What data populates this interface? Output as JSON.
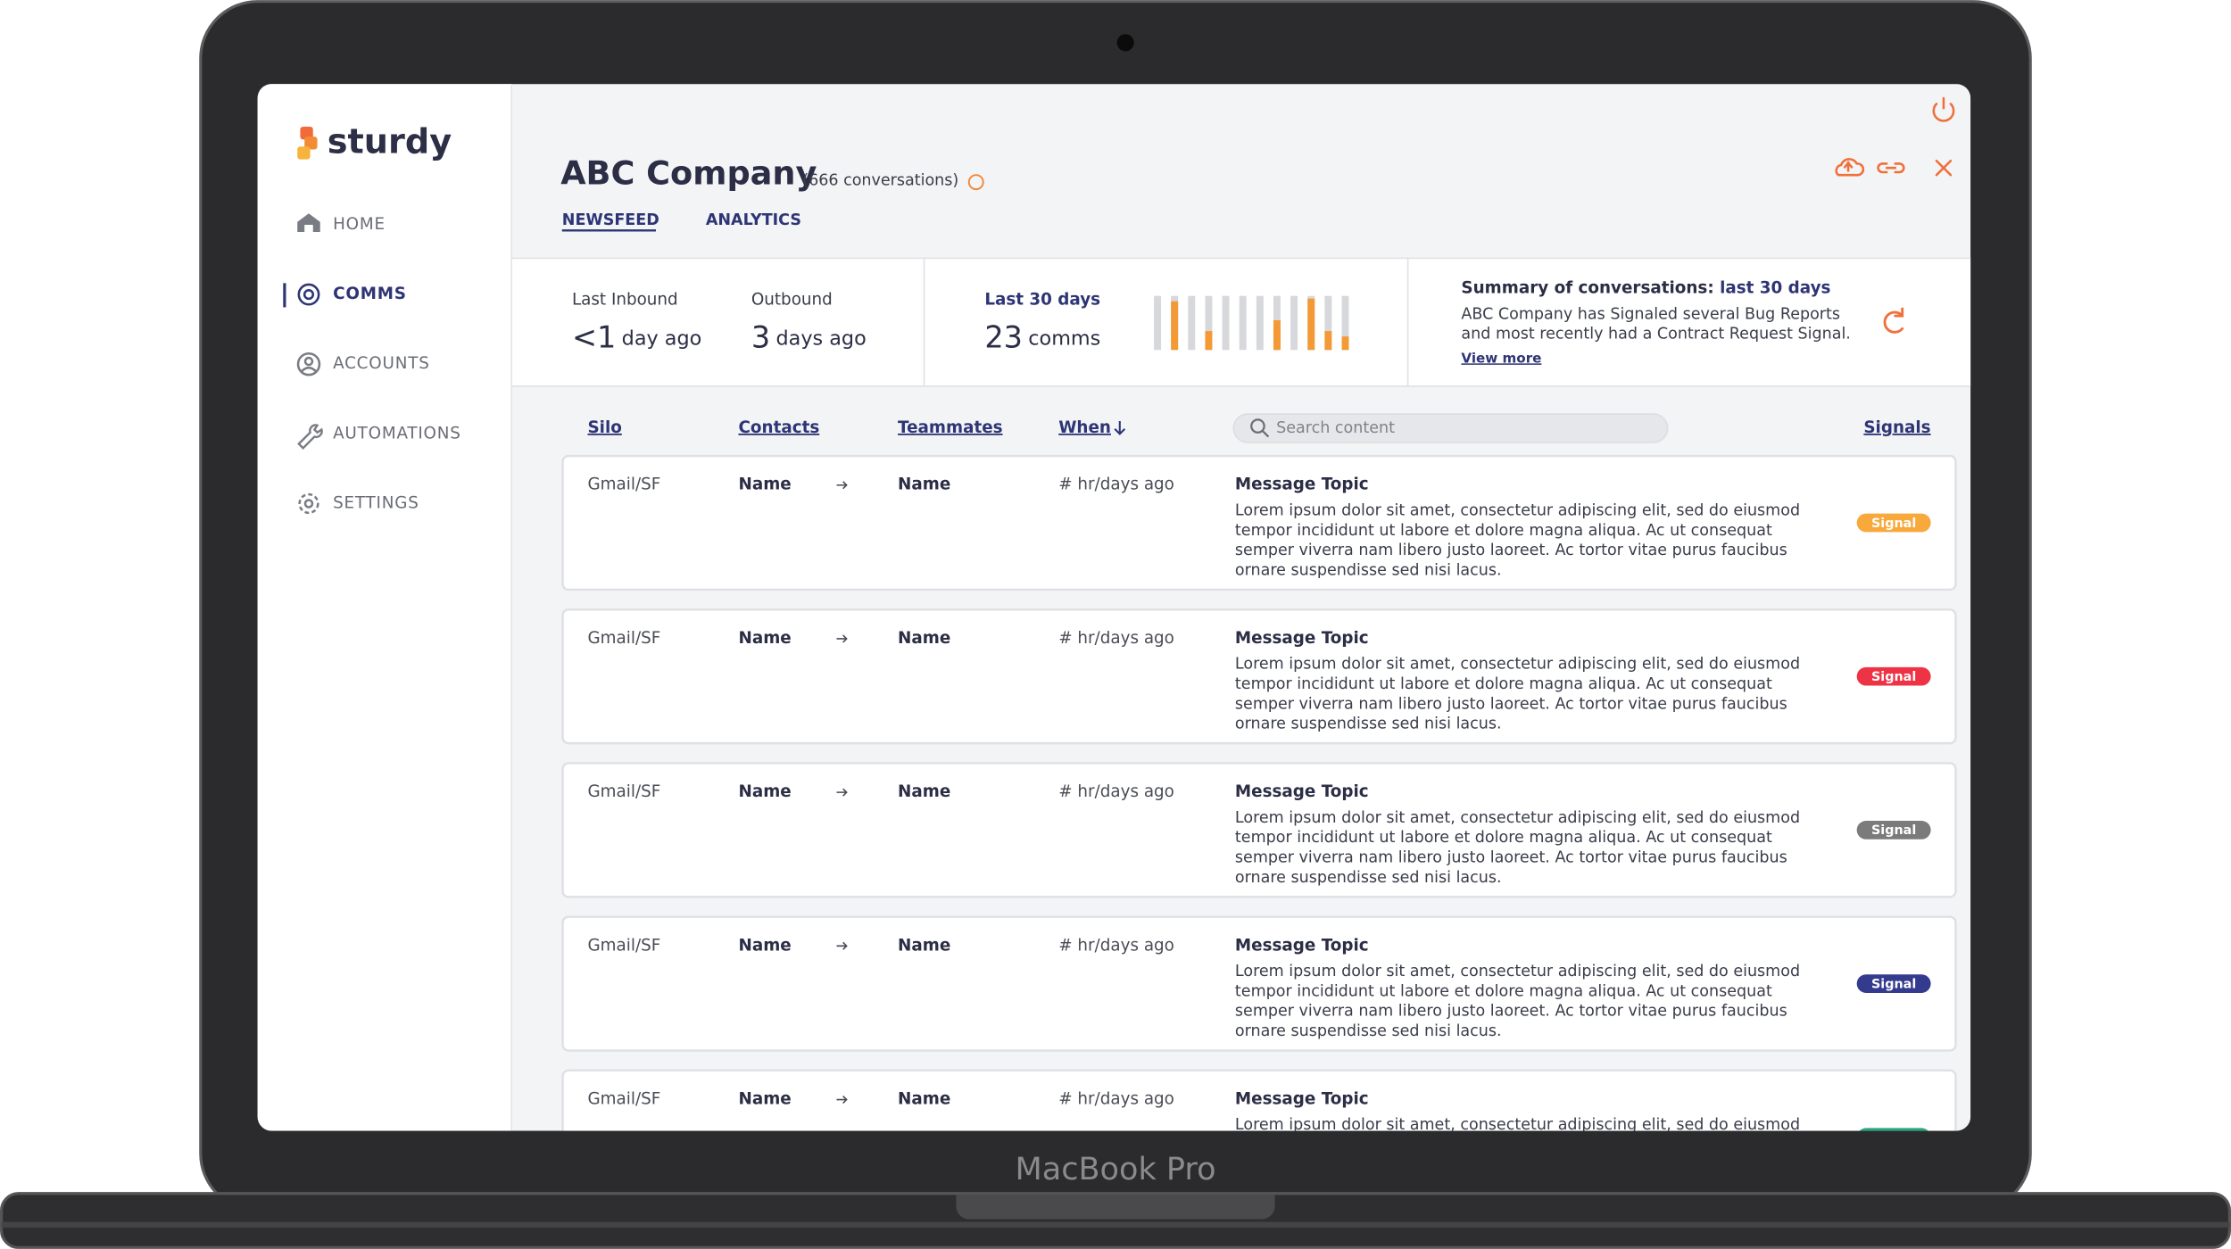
{
  "device_label": "MacBook Pro",
  "sidebar": {
    "logo": "sturdy",
    "nav": [
      "HOME",
      "COMMS",
      "ACCOUNTS",
      "AUTOMATIONS",
      "SETTINGS"
    ]
  },
  "header": {
    "title": "ABC Company",
    "conversations": "(666 conversations)",
    "tabs": [
      "NEWSFEED",
      "ANALYTICS"
    ]
  },
  "stats": {
    "last_inbound": {
      "label": "Last Inbound",
      "value": "<1",
      "unit": "day ago"
    },
    "outbound": {
      "label": "Outbound",
      "value": "3",
      "unit": "days ago"
    },
    "last_30_days": {
      "label": "Last 30 days",
      "value": "23",
      "unit": "comms"
    },
    "activity": [
      0,
      0.9,
      0,
      0.35,
      0,
      0,
      0,
      0.55,
      0,
      0.95,
      0.35,
      0.25
    ]
  },
  "summary": {
    "title": "Summary of conversations:",
    "period": "last 30 days",
    "lines": [
      "ABC Company has Signaled several Bug Reports",
      "and most recently had a Contract Request Signal."
    ],
    "link": "View more"
  },
  "table": {
    "columns": [
      "Silo",
      "Contacts",
      "Teammates",
      "When"
    ],
    "search": "Search content",
    "signals": "Signals",
    "rows": [
      {
        "silo": "Gmail/SF",
        "contact": "Name",
        "teammate": "Name",
        "when": "# hr/days ago",
        "topic": "Message Topic",
        "body": [
          "Lorem ipsum dolor sit amet, consectetur adipiscing elit, sed do eiusmod",
          "tempor incididunt ut labore et dolore magna aliqua. Ac ut consequat",
          "semper viverra nam libero justo laoreet. Ac tortor vitae purus faucibus",
          "ornare suspendisse sed nisi lacus."
        ],
        "signal": "Signal",
        "signal_color": "#f7a93c"
      },
      {
        "silo": "Gmail/SF",
        "contact": "Name",
        "teammate": "Name",
        "when": "# hr/days ago",
        "topic": "Message Topic",
        "body": [
          "Lorem ipsum dolor sit amet, consectetur adipiscing elit, sed do eiusmod",
          "tempor incididunt ut labore et dolore magna aliqua. Ac ut consequat",
          "semper viverra nam libero justo laoreet. Ac tortor vitae purus faucibus",
          "ornare suspendisse sed nisi lacus."
        ],
        "signal": "Signal",
        "signal_color": "#ee3344"
      },
      {
        "silo": "Gmail/SF",
        "contact": "Name",
        "teammate": "Name",
        "when": "# hr/days ago",
        "topic": "Message Topic",
        "body": [
          "Lorem ipsum dolor sit amet, consectetur adipiscing elit, sed do eiusmod",
          "tempor incididunt ut labore et dolore magna aliqua. Ac ut consequat",
          "semper viverra nam libero justo laoreet. Ac tortor vitae purus faucibus",
          "ornare suspendisse sed nisi lacus."
        ],
        "signal": "Signal",
        "signal_color": "#7b7b7b"
      },
      {
        "silo": "Gmail/SF",
        "contact": "Name",
        "teammate": "Name",
        "when": "# hr/days ago",
        "topic": "Message Topic",
        "body": [
          "Lorem ipsum dolor sit amet, consectetur adipiscing elit, sed do eiusmod",
          "tempor incididunt ut labore et dolore magna aliqua. Ac ut consequat",
          "semper viverra nam libero justo laoreet. Ac tortor vitae purus faucibus",
          "ornare suspendisse sed nisi lacus."
        ],
        "signal": "Signal",
        "signal_color": "#343b8e"
      },
      {
        "silo": "Gmail/SF",
        "contact": "Name",
        "teammate": "Name",
        "when": "# hr/days ago",
        "topic": "Message Topic",
        "body": [
          "Lorem ipsum dolor sit amet, consectetur adipiscing elit, sed do eiusmod"
        ],
        "signal_color": "#2aa67d"
      }
    ]
  }
}
